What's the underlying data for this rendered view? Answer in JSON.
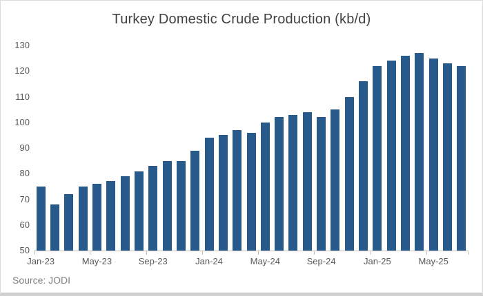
{
  "chart_data": {
    "type": "bar",
    "title": "Turkey Domestic Crude Production (kb/d)",
    "categories": [
      "Jan-23",
      "Feb-23",
      "Mar-23",
      "Apr-23",
      "May-23",
      "Jun-23",
      "Jul-23",
      "Aug-23",
      "Sep-23",
      "Oct-23",
      "Nov-23",
      "Dec-23",
      "Jan-24",
      "Feb-24",
      "Mar-24",
      "Apr-24",
      "May-24",
      "Jun-24",
      "Jul-24",
      "Aug-24",
      "Sep-24",
      "Oct-24",
      "Nov-24",
      "Dec-24",
      "Jan-25",
      "Feb-25",
      "Mar-25",
      "Apr-25",
      "May-25",
      "Jun-25",
      "Jul-25"
    ],
    "values": [
      75,
      68,
      72,
      75,
      76,
      77,
      79,
      81,
      83,
      85,
      85,
      89,
      94,
      95,
      97,
      96,
      100,
      102,
      103,
      104,
      102,
      105,
      110,
      116,
      122,
      124,
      126,
      127,
      125,
      123,
      122
    ],
    "xlabel": "",
    "ylabel": "",
    "ylim": [
      50,
      130
    ],
    "yticks": [
      50,
      60,
      70,
      80,
      90,
      100,
      110,
      120,
      130
    ],
    "x_tick_labels_shown": [
      "Jan-23",
      "May-23",
      "Sep-23",
      "Jan-24",
      "May-24",
      "Sep-24",
      "Jan-25",
      "May-25"
    ],
    "x_label_interval": 4,
    "grid": false,
    "legend": "none",
    "bar_color": "#27598b",
    "axis_line_color": "#bfbfbf",
    "tick_label_color": "#595959",
    "title_color": "#404040"
  },
  "source_note": {
    "text": "Source: JODI",
    "color": "#7f7f7f"
  },
  "frame": {
    "background": "#ffffff",
    "border_color": "#dcdcdc"
  }
}
